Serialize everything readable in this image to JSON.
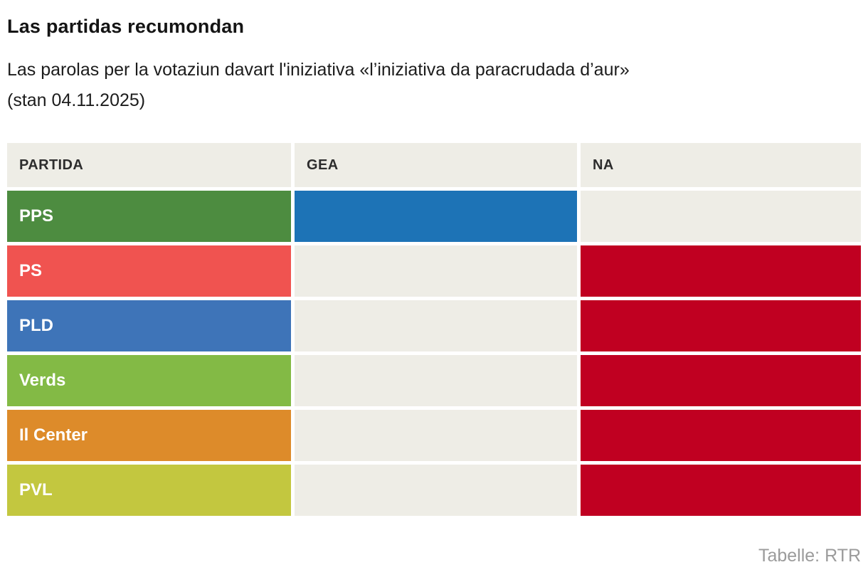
{
  "header": {
    "title": "Las partidas recumondan",
    "subtitle_lines": [
      "Las parolas per la votaziun davart l'iniziativa «l’iniziativa da paracrudada d’aur»",
      "(stan 04.11.2025)"
    ]
  },
  "table": {
    "columns": [
      "PARTIDA",
      "GEA",
      "NA"
    ],
    "rows": [
      {
        "party": "PPS",
        "color": "#4d8c40",
        "gea": true,
        "na": false
      },
      {
        "party": "PS",
        "color": "#f05350",
        "gea": false,
        "na": true
      },
      {
        "party": "PLD",
        "color": "#3e74b8",
        "gea": false,
        "na": true
      },
      {
        "party": "Verds",
        "color": "#83ba45",
        "gea": false,
        "na": true
      },
      {
        "party": "Il Center",
        "color": "#dd8b2a",
        "gea": false,
        "na": true
      },
      {
        "party": "PVL",
        "color": "#c3c73f",
        "gea": false,
        "na": true
      }
    ]
  },
  "colors": {
    "yes": "#1d73b6",
    "no": "#c00021",
    "empty_cell": "#eeede6",
    "header_bg": "#eeede6",
    "footer_text": "#9b9b9b"
  },
  "footer": {
    "source": "Tabelle: RTR"
  },
  "chart_data": {
    "type": "table",
    "title": "Las partidas recumondan",
    "subtitle": "Las parolas per la votaziun davart l'iniziativa «l’iniziativa da paracrudada d’aur» (stan 04.11.2025)",
    "columns": [
      "PARTIDA",
      "GEA",
      "NA"
    ],
    "rows": [
      {
        "partida": "PPS",
        "gea": "yes",
        "na": ""
      },
      {
        "partida": "PS",
        "gea": "",
        "na": "no"
      },
      {
        "partida": "PLD",
        "gea": "",
        "na": "no"
      },
      {
        "partida": "Verds",
        "gea": "",
        "na": "no"
      },
      {
        "partida": "Il Center",
        "gea": "",
        "na": "no"
      },
      {
        "partida": "PVL",
        "gea": "",
        "na": "no"
      }
    ],
    "source": "Tabelle: RTR"
  }
}
